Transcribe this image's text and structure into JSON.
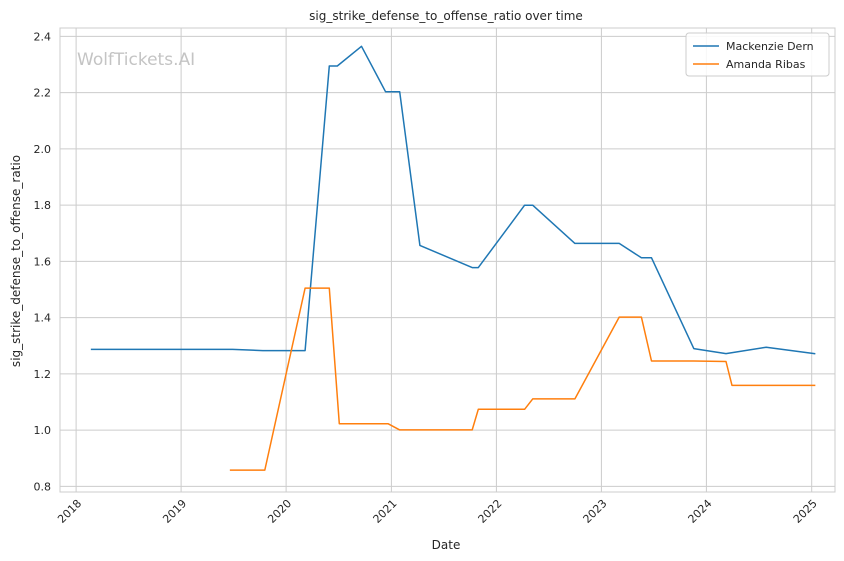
{
  "watermark": "WolfTickets.AI",
  "colors": {
    "grid": "#cccccc",
    "frame": "#cccccc",
    "text": "#262626",
    "background": "#ffffff"
  },
  "chart_data": {
    "type": "line",
    "title": "sig_strike_defense_to_offense_ratio over time",
    "xlabel": "Date",
    "ylabel": "sig_strike_defense_to_offense_ratio",
    "x_ticks": [
      "2018",
      "2019",
      "2020",
      "2021",
      "2022",
      "2023",
      "2024",
      "2025"
    ],
    "y_ticks": [
      "0.8",
      "1.0",
      "1.2",
      "1.4",
      "1.6",
      "1.8",
      "2.0",
      "2.2",
      "2.4"
    ],
    "xlim": [
      "2017-11-06",
      "2025-03-23"
    ],
    "ylim": [
      0.78,
      2.43
    ],
    "grid": true,
    "legend_position": "top-right",
    "series": [
      {
        "name": "Mackenzie Dern",
        "color": "#1f77b4",
        "points": [
          [
            "2018-02-24",
            1.287
          ],
          [
            "2019-06-29",
            1.287
          ],
          [
            "2019-10-12",
            1.283
          ],
          [
            "2020-03-07",
            1.283
          ],
          [
            "2020-05-30",
            2.295
          ],
          [
            "2020-06-27",
            2.295
          ],
          [
            "2020-09-19",
            2.365
          ],
          [
            "2020-12-12",
            2.203
          ],
          [
            "2021-01-30",
            2.203
          ],
          [
            "2021-04-10",
            1.657
          ],
          [
            "2021-10-09",
            1.578
          ],
          [
            "2021-10-30",
            1.578
          ],
          [
            "2022-04-09",
            1.8
          ],
          [
            "2022-05-07",
            1.8
          ],
          [
            "2022-10-01",
            1.664
          ],
          [
            "2023-03-04",
            1.664
          ],
          [
            "2023-05-20",
            1.613
          ],
          [
            "2023-06-24",
            1.613
          ],
          [
            "2023-11-18",
            1.29
          ],
          [
            "2024-03-09",
            1.272
          ],
          [
            "2024-07-27",
            1.295
          ],
          [
            "2025-01-11",
            1.272
          ]
        ]
      },
      {
        "name": "Amanda Ribas",
        "color": "#ff7f0e",
        "points": [
          [
            "2019-06-22",
            0.858
          ],
          [
            "2019-10-19",
            0.858
          ],
          [
            "2020-03-07",
            1.505
          ],
          [
            "2020-05-30",
            1.505
          ],
          [
            "2020-07-04",
            1.023
          ],
          [
            "2020-12-20",
            1.023
          ],
          [
            "2021-01-30",
            1.001
          ],
          [
            "2021-10-09",
            1.001
          ],
          [
            "2021-10-30",
            1.074
          ],
          [
            "2022-04-09",
            1.074
          ],
          [
            "2022-05-07",
            1.111
          ],
          [
            "2022-10-01",
            1.111
          ],
          [
            "2023-03-04",
            1.402
          ],
          [
            "2023-05-20",
            1.402
          ],
          [
            "2023-06-24",
            1.246
          ],
          [
            "2023-11-18",
            1.246
          ],
          [
            "2024-03-09",
            1.244
          ],
          [
            "2024-03-30",
            1.159
          ],
          [
            "2025-01-11",
            1.159
          ]
        ]
      }
    ]
  }
}
